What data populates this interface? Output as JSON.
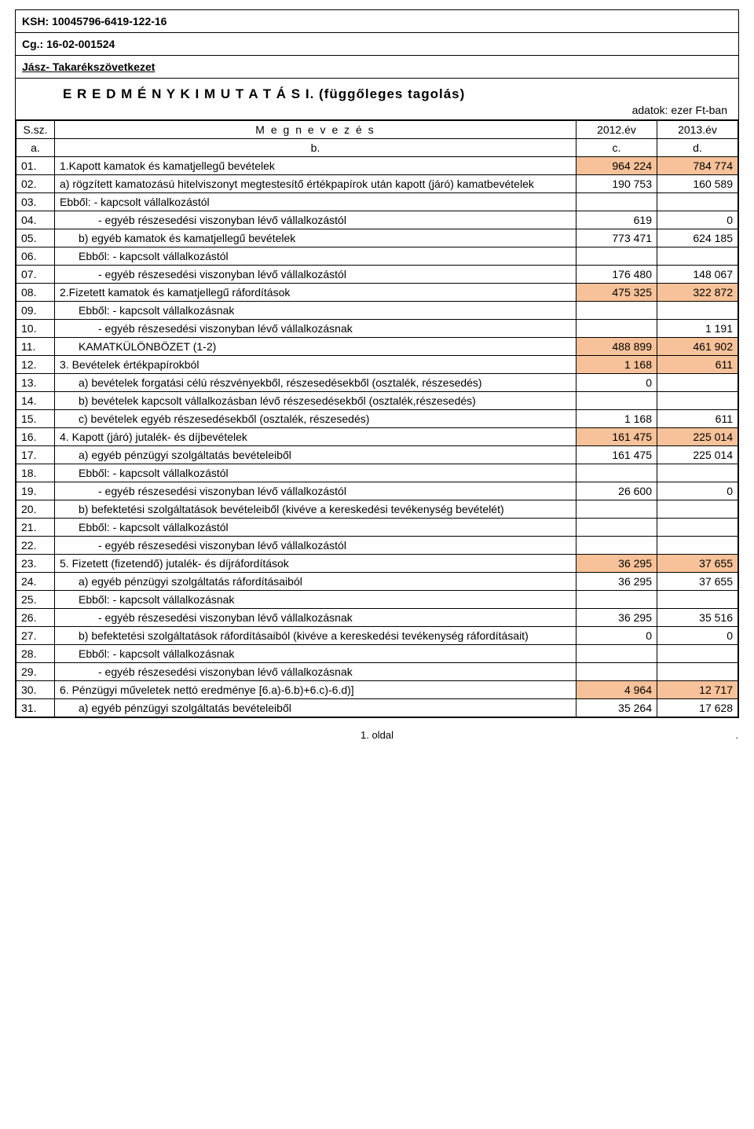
{
  "header": {
    "ksh": "KSH: 10045796-6419-122-16",
    "cg": "Cg.: 16-02-001524",
    "org": "Jász- Takarékszövetkezet"
  },
  "titlebox": {
    "title": "E R E D M É N Y K I M U T A T Á S I. (függőleges tagolás)",
    "subtitle": "adatok: ezer Ft-ban"
  },
  "colheader": {
    "sz": "S.sz.",
    "name": "M e g n e v e z é s",
    "y1": "2012.év",
    "y2": "2013.év",
    "a": "a.",
    "b": "b.",
    "c": "c.",
    "d": "d."
  },
  "colors": {
    "highlight": "#f7c299"
  },
  "rows": [
    {
      "n": "01.",
      "label": "1.Kapott kamatok és kamatjellegű bevételek",
      "v1": "964 224",
      "v2": "784 774",
      "indent": 0,
      "hl_v1": true,
      "hl_v2": true
    },
    {
      "n": "02.",
      "label": "    a) rögzített kamatozású hitelviszonyt megtestesítő értékpapírok után kapott (járó) kamatbevételek",
      "v1": "190 753",
      "v2": "160 589",
      "indent": 0
    },
    {
      "n": "03.",
      "label": "    Ebből: - kapcsolt vállalkozástól",
      "v1": "",
      "v2": "",
      "indent": 0
    },
    {
      "n": "04.",
      "label": "- egyéb részesedési viszonyban lévő vállalkozástól",
      "v1": "619",
      "v2": "0",
      "indent": 2
    },
    {
      "n": "05.",
      "label": "b) egyéb kamatok és kamatjellegű bevételek",
      "v1": "773 471",
      "v2": "624 185",
      "indent": 1
    },
    {
      "n": "06.",
      "label": "Ebből: - kapcsolt vállalkozástól",
      "v1": "",
      "v2": "",
      "indent": 1
    },
    {
      "n": "07.",
      "label": "- egyéb részesedési viszonyban lévő vállalkozástól",
      "v1": "176 480",
      "v2": "148 067",
      "indent": 2
    },
    {
      "n": "08.",
      "label": "2.Fizetett kamatok és kamatjellegű ráfordítások",
      "v1": "475 325",
      "v2": "322 872",
      "indent": 0,
      "hl_v1": true,
      "hl_v2": true
    },
    {
      "n": "09.",
      "label": "Ebből: - kapcsolt vállalkozásnak",
      "v1": "",
      "v2": "",
      "indent": 1
    },
    {
      "n": "10.",
      "label": "- egyéb részesedési viszonyban lévő vállalkozásnak",
      "v1": "",
      "v2": "1 191",
      "indent": 2
    },
    {
      "n": "11.",
      "label": "KAMATKÜLÖNBÖZET (1-2)",
      "v1": "488 899",
      "v2": "461 902",
      "indent": 1,
      "hl_v1": true,
      "hl_v2": true
    },
    {
      "n": "12.",
      "label": "3. Bevételek értékpapírokból",
      "v1": "1 168",
      "v2": "611",
      "indent": 0,
      "hl_v1": true,
      "hl_v2": true
    },
    {
      "n": "13.",
      "label": "a) bevételek forgatási célú részvényekből, részesedésekből (osztalék, részesedés)",
      "v1": "0",
      "v2": "",
      "indent": 1
    },
    {
      "n": "14.",
      "label": "b) bevételek kapcsolt vállalkozásban lévő részesedésekből (osztalék,részesedés)",
      "v1": "",
      "v2": "",
      "indent": 1
    },
    {
      "n": "15.",
      "label": "c) bevételek egyéb részesedésekből (osztalék, részesedés)",
      "v1": "1 168",
      "v2": "611",
      "indent": 1
    },
    {
      "n": "16.",
      "label": "4. Kapott (járó) jutalék- és díjbevételek",
      "v1": "161 475",
      "v2": "225 014",
      "indent": 0,
      "hl_v1": true,
      "hl_v2": true
    },
    {
      "n": "17.",
      "label": "a) egyéb pénzügyi szolgáltatás bevételeiből",
      "v1": "161 475",
      "v2": "225 014",
      "indent": 1
    },
    {
      "n": "18.",
      "label": "Ebből: - kapcsolt vállalkozástól",
      "v1": "",
      "v2": "",
      "indent": 1
    },
    {
      "n": "19.",
      "label": "- egyéb részesedési viszonyban lévő vállalkozástól",
      "v1": "26 600",
      "v2": "0",
      "indent": 2
    },
    {
      "n": "20.",
      "label": "b) befektetési szolgáltatások bevételeiből (kivéve a kereskedési tevékenység bevételét)",
      "v1": "",
      "v2": "",
      "indent": 1
    },
    {
      "n": "21.",
      "label": "Ebből: - kapcsolt vállalkozástól",
      "v1": "",
      "v2": "",
      "indent": 1
    },
    {
      "n": "22.",
      "label": "- egyéb részesedési viszonyban lévő vállalkozástól",
      "v1": "",
      "v2": "",
      "indent": 2
    },
    {
      "n": "23.",
      "label": "5. Fizetett (fizetendő) jutalék- és díjráfordítások",
      "v1": "36 295",
      "v2": "37 655",
      "indent": 0,
      "hl_v1": true,
      "hl_v2": true
    },
    {
      "n": "24.",
      "label": "a) egyéb pénzügyi szolgáltatás ráfordításaiból",
      "v1": "36 295",
      "v2": "37 655",
      "indent": 1
    },
    {
      "n": "25.",
      "label": "Ebből: - kapcsolt vállalkozásnak",
      "v1": "",
      "v2": "",
      "indent": 1
    },
    {
      "n": "26.",
      "label": "- egyéb részesedési viszonyban lévő vállalkozásnak",
      "v1": "36 295",
      "v2": "35 516",
      "indent": 2
    },
    {
      "n": "27.",
      "label": "b) befektetési szolgáltatások ráfordításaiból (kivéve a kereskedési tevékenység ráfordításait)",
      "v1": "0",
      "v2": "0",
      "indent": 1
    },
    {
      "n": "28.",
      "label": "Ebből: - kapcsolt vállalkozásnak",
      "v1": "",
      "v2": "",
      "indent": 1
    },
    {
      "n": "29.",
      "label": "- egyéb részesedési viszonyban lévő vállalkozásnak",
      "v1": "",
      "v2": "",
      "indent": 2
    },
    {
      "n": "30.",
      "label": "6. Pénzügyi műveletek nettó eredménye [6.a)-6.b)+6.c)-6.d)]",
      "v1": "4 964",
      "v2": "12 717",
      "indent": 0,
      "hl_v1": true,
      "hl_v2": true
    },
    {
      "n": "31.",
      "label": "a) egyéb pénzügyi szolgáltatás bevételeiből",
      "v1": "35 264",
      "v2": "17 628",
      "indent": 1
    }
  ],
  "footer": {
    "page": "1. oldal",
    "dot": "."
  }
}
